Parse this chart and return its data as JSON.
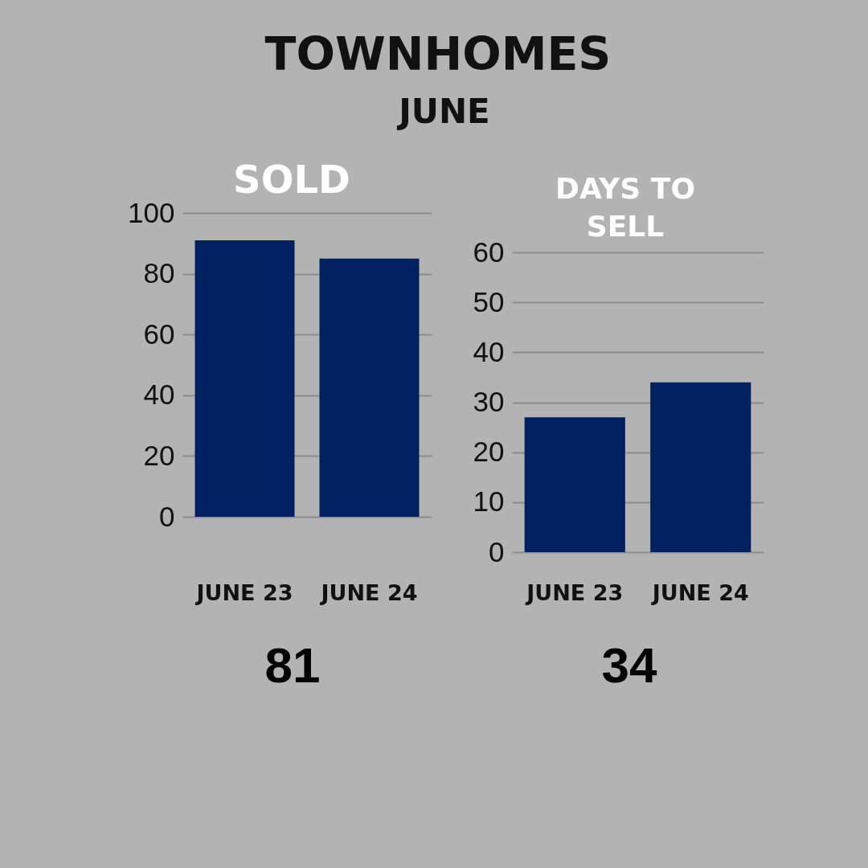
{
  "chart_data": [
    {
      "type": "other",
      "title": "TOWNHOMES",
      "subtitle": "JUNE"
    },
    {
      "type": "bar",
      "title": "SOLD",
      "categories": [
        "JUNE 23",
        "JUNE 24"
      ],
      "values": [
        91,
        85
      ],
      "color": "#002060",
      "ylim": [
        0,
        100
      ],
      "yticks": [
        0,
        20,
        40,
        60,
        80,
        100
      ],
      "grid": "y",
      "annotations": [
        "81"
      ]
    },
    {
      "type": "bar",
      "title": "DAYS TO SELL",
      "categories": [
        "JUNE 23",
        "JUNE 24"
      ],
      "values": [
        27,
        34
      ],
      "color": "#002060",
      "ylim": [
        0,
        60
      ],
      "yticks": [
        0,
        10,
        20,
        30,
        40,
        50,
        60
      ],
      "grid": "y",
      "annotations": [
        "34"
      ]
    }
  ]
}
